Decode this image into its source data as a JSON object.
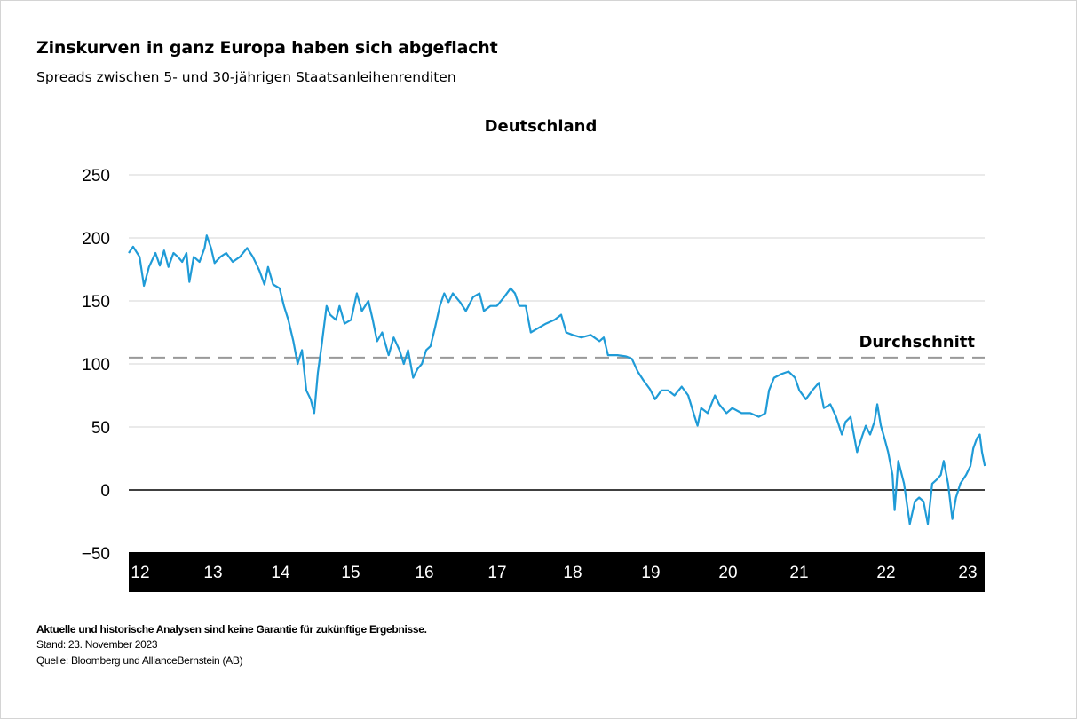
{
  "title": "Zinskurven in ganz Europa haben sich abgeflacht",
  "subtitle": "Spreads zwischen 5- und 30-jährigen Staatsanleihenrenditen",
  "footer": {
    "disclaimer": "Aktuelle und historische Analysen sind keine Garantie für zukünftige Ergebnisse.",
    "date": "Stand: 23. November 2023",
    "source": "Quelle: Bloomberg und AllianceBernstein (AB)"
  },
  "chart_data": {
    "type": "line",
    "title": "Deutschland",
    "xlabel": "",
    "ylabel": "",
    "ylim": [
      -50,
      250
    ],
    "xlim": [
      2012.0,
      2023.9
    ],
    "yticks": [
      250,
      200,
      150,
      100,
      50,
      0,
      -50
    ],
    "ytick_labels": [
      "250",
      "200",
      "150",
      "100",
      "50",
      "0",
      "−50"
    ],
    "xtick_labels": [
      "12",
      "13",
      "14",
      "15",
      "16",
      "17",
      "18",
      "19",
      "20",
      "21",
      "22",
      "23"
    ],
    "grid": true,
    "colors": {
      "series": "#1f9bd7",
      "average": "#999999",
      "zero": "#000000",
      "grid": "#e4e4e4",
      "axis_band": "#000000"
    },
    "average": {
      "label": "Durchschnitt",
      "value": 105
    },
    "series": [
      {
        "points": [
          [
            2012.0,
            188
          ],
          [
            2012.06,
            193
          ],
          [
            2012.15,
            185
          ],
          [
            2012.21,
            162
          ],
          [
            2012.28,
            177
          ],
          [
            2012.37,
            188
          ],
          [
            2012.43,
            178
          ],
          [
            2012.49,
            190
          ],
          [
            2012.55,
            177
          ],
          [
            2012.62,
            188
          ],
          [
            2012.68,
            185
          ],
          [
            2012.74,
            181
          ],
          [
            2012.8,
            188
          ],
          [
            2012.84,
            165
          ],
          [
            2012.9,
            185
          ],
          [
            2012.98,
            181
          ],
          [
            2013.05,
            192
          ],
          [
            2013.08,
            202
          ],
          [
            2013.14,
            192
          ],
          [
            2013.19,
            180
          ],
          [
            2013.27,
            185
          ],
          [
            2013.35,
            188
          ],
          [
            2013.44,
            181
          ],
          [
            2013.54,
            185
          ],
          [
            2013.64,
            192
          ],
          [
            2013.72,
            185
          ],
          [
            2013.81,
            174
          ],
          [
            2013.88,
            163
          ],
          [
            2013.93,
            177
          ],
          [
            2014.0,
            163
          ],
          [
            2014.09,
            160
          ],
          [
            2014.15,
            146
          ],
          [
            2014.21,
            135
          ],
          [
            2014.28,
            118
          ],
          [
            2014.34,
            100
          ],
          [
            2014.4,
            111
          ],
          [
            2014.46,
            79
          ],
          [
            2014.52,
            72
          ],
          [
            2014.57,
            61
          ],
          [
            2014.62,
            93
          ],
          [
            2014.67,
            114
          ],
          [
            2014.74,
            146
          ],
          [
            2014.79,
            139
          ],
          [
            2014.87,
            135
          ],
          [
            2014.92,
            146
          ],
          [
            2014.99,
            132
          ],
          [
            2015.08,
            135
          ],
          [
            2015.16,
            156
          ],
          [
            2015.23,
            142
          ],
          [
            2015.32,
            150
          ],
          [
            2015.38,
            135
          ],
          [
            2015.44,
            118
          ],
          [
            2015.51,
            125
          ],
          [
            2015.6,
            107
          ],
          [
            2015.67,
            121
          ],
          [
            2015.75,
            111
          ],
          [
            2015.81,
            100
          ],
          [
            2015.87,
            111
          ],
          [
            2015.94,
            89
          ],
          [
            2016.0,
            96
          ],
          [
            2016.06,
            100
          ],
          [
            2016.12,
            111
          ],
          [
            2016.18,
            114
          ],
          [
            2016.24,
            128
          ],
          [
            2016.31,
            146
          ],
          [
            2016.37,
            156
          ],
          [
            2016.43,
            149
          ],
          [
            2016.49,
            156
          ],
          [
            2016.59,
            149
          ],
          [
            2016.67,
            142
          ],
          [
            2016.77,
            153
          ],
          [
            2016.86,
            156
          ],
          [
            2016.92,
            142
          ],
          [
            2017.01,
            146
          ],
          [
            2017.1,
            146
          ],
          [
            2017.2,
            153
          ],
          [
            2017.29,
            160
          ],
          [
            2017.35,
            156
          ],
          [
            2017.41,
            146
          ],
          [
            2017.5,
            146
          ],
          [
            2017.57,
            125
          ],
          [
            2017.66,
            128
          ],
          [
            2017.78,
            132
          ],
          [
            2017.9,
            135
          ],
          [
            2017.99,
            139
          ],
          [
            2018.06,
            125
          ],
          [
            2018.15,
            123
          ],
          [
            2018.27,
            121
          ],
          [
            2018.4,
            123
          ],
          [
            2018.52,
            118
          ],
          [
            2018.58,
            121
          ],
          [
            2018.64,
            107
          ],
          [
            2018.77,
            107
          ],
          [
            2018.89,
            106
          ],
          [
            2018.97,
            104
          ],
          [
            2019.05,
            94
          ],
          [
            2019.13,
            87
          ],
          [
            2019.22,
            80
          ],
          [
            2019.29,
            72
          ],
          [
            2019.38,
            79
          ],
          [
            2019.47,
            79
          ],
          [
            2019.56,
            75
          ],
          [
            2019.66,
            82
          ],
          [
            2019.75,
            75
          ],
          [
            2019.84,
            58
          ],
          [
            2019.88,
            51
          ],
          [
            2019.93,
            65
          ],
          [
            2020.02,
            61
          ],
          [
            2020.12,
            75
          ],
          [
            2020.18,
            68
          ],
          [
            2020.28,
            61
          ],
          [
            2020.36,
            65
          ],
          [
            2020.49,
            61
          ],
          [
            2020.61,
            61
          ],
          [
            2020.73,
            58
          ],
          [
            2020.82,
            61
          ],
          [
            2020.87,
            79
          ],
          [
            2020.94,
            89
          ],
          [
            2021.04,
            92
          ],
          [
            2021.14,
            94
          ],
          [
            2021.23,
            89
          ],
          [
            2021.29,
            79
          ],
          [
            2021.38,
            72
          ],
          [
            2021.47,
            79
          ],
          [
            2021.56,
            85
          ],
          [
            2021.63,
            65
          ],
          [
            2021.72,
            68
          ],
          [
            2021.8,
            58
          ],
          [
            2021.88,
            44
          ],
          [
            2021.93,
            54
          ],
          [
            2022.0,
            58
          ],
          [
            2022.09,
            30
          ],
          [
            2022.15,
            41
          ],
          [
            2022.21,
            51
          ],
          [
            2022.27,
            44
          ],
          [
            2022.33,
            54
          ],
          [
            2022.37,
            68
          ],
          [
            2022.42,
            51
          ],
          [
            2022.47,
            41
          ],
          [
            2022.52,
            30
          ],
          [
            2022.58,
            12
          ],
          [
            2022.61,
            -16
          ],
          [
            2022.66,
            23
          ],
          [
            2022.74,
            5
          ],
          [
            2022.82,
            -27
          ],
          [
            2022.89,
            -9
          ],
          [
            2022.95,
            -6
          ],
          [
            2023.01,
            -9
          ],
          [
            2023.07,
            -27
          ],
          [
            2023.13,
            5
          ],
          [
            2023.19,
            8
          ],
          [
            2023.25,
            12
          ],
          [
            2023.29,
            23
          ],
          [
            2023.35,
            5
          ],
          [
            2023.41,
            -23
          ],
          [
            2023.46,
            -6
          ],
          [
            2023.52,
            5
          ],
          [
            2023.6,
            12
          ],
          [
            2023.66,
            19
          ],
          [
            2023.7,
            33
          ],
          [
            2023.75,
            41
          ],
          [
            2023.79,
            44
          ],
          [
            2023.82,
            30
          ],
          [
            2023.86,
            19
          ]
        ]
      }
    ]
  }
}
